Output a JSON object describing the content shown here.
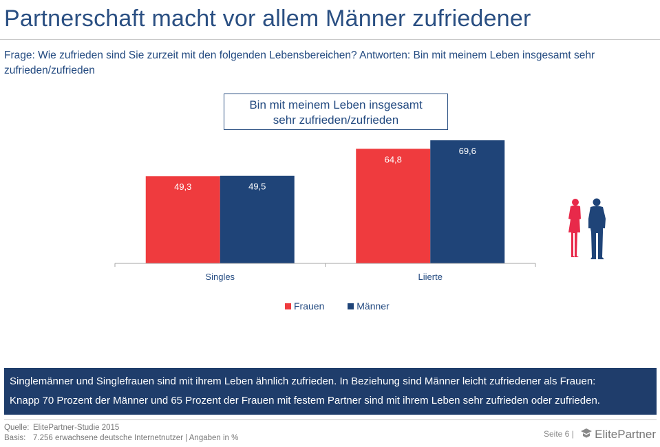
{
  "title": "Partnerschaft macht vor allem Männer zufriedener",
  "question": "Frage: Wie zufrieden sind Sie zurzeit mit den folgenden Lebensbereichen? Antworten: Bin mit meinem Leben insgesamt sehr zufrieden/zufrieden",
  "callout": {
    "line1": "Bin mit meinem Leben insgesamt",
    "line2": "sehr zufrieden/zufrieden"
  },
  "chart_data": {
    "type": "bar",
    "categories": [
      "Singles",
      "Liierte"
    ],
    "series": [
      {
        "name": "Frauen",
        "values": [
          49.3,
          64.8
        ],
        "labels": [
          "49,3",
          "64,8"
        ],
        "color": "#ef3b3e"
      },
      {
        "name": "Männer",
        "values": [
          49.5,
          69.6
        ],
        "labels": [
          "49,5",
          "69,6"
        ],
        "color": "#1f4478"
      }
    ],
    "ylim": [
      0,
      70
    ],
    "legend_position": "bottom-center",
    "grid": false
  },
  "icons": {
    "people": "woman-man-silhouettes-icon"
  },
  "banner": {
    "line1": "Singlemänner und Singlefrauen sind mit ihrem Leben ähnlich zufrieden. In Beziehung sind Männer leicht zufriedener als Frauen:",
    "line2": "Knapp 70 Prozent der Männer und 65 Prozent der Frauen mit festem Partner sind mit ihrem Leben sehr zufrieden oder zufrieden."
  },
  "footer": {
    "source_label": "Quelle:",
    "source_value": "ElitePartner-Studie 2015",
    "basis_label": "Basis:",
    "basis_value": "7.256 erwachsene deutsche Internetnutzer | Angaben in %"
  },
  "page": {
    "label": "Seite 6",
    "separator": "|",
    "brand": "ElitePartner"
  },
  "colors": {
    "title": "#2a4f82",
    "banner_bg": "#1f3d6b"
  }
}
